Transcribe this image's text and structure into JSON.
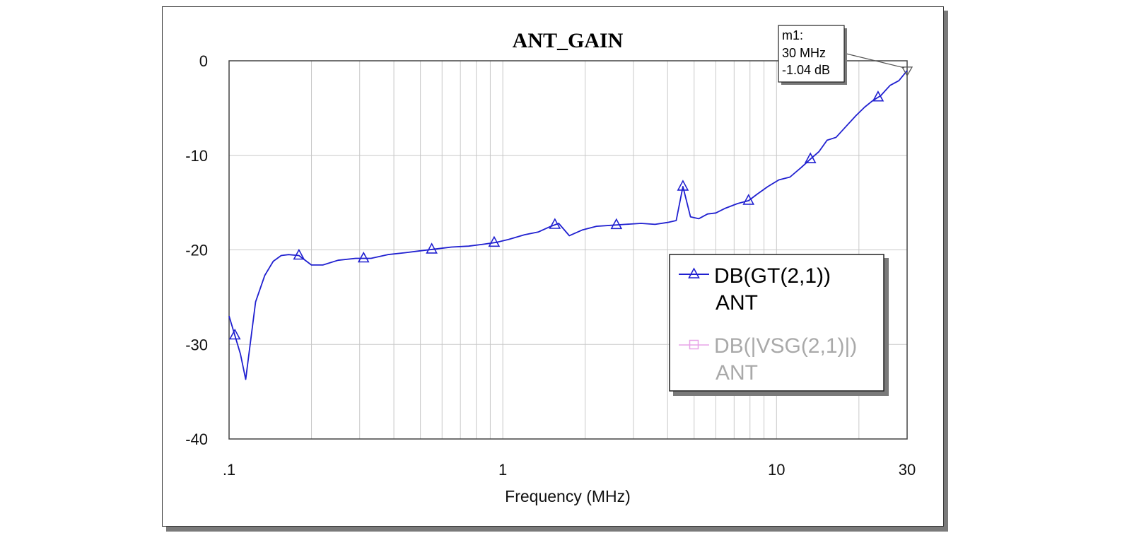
{
  "chart_data": {
    "type": "line",
    "title": "ANT_GAIN",
    "xlabel": "Frequency (MHz)",
    "ylabel": "",
    "x_scale": "log",
    "xlim": [
      0.1,
      30
    ],
    "ylim": [
      -40,
      0
    ],
    "grid": true,
    "x_tick_labels": [
      {
        "value": 0.1,
        "label": ".1"
      },
      {
        "value": 1,
        "label": "1"
      },
      {
        "value": 10,
        "label": "10"
      },
      {
        "value": 30,
        "label": "30"
      }
    ],
    "y_tick_labels": [
      {
        "value": 0,
        "label": "0"
      },
      {
        "value": -10,
        "label": "-10"
      },
      {
        "value": -20,
        "label": "-20"
      },
      {
        "value": -30,
        "label": "-30"
      },
      {
        "value": -40,
        "label": "-40"
      }
    ],
    "legend_position": "lower-right",
    "series": [
      {
        "name": "DB(GT(2,1))",
        "name_line2": "ANT",
        "color": "#2020d0",
        "marker": "triangle",
        "x": [
          0.1,
          0.11,
          0.115,
          0.125,
          0.135,
          0.145,
          0.155,
          0.165,
          0.18,
          0.2,
          0.22,
          0.25,
          0.29,
          0.33,
          0.38,
          0.44,
          0.5,
          0.57,
          0.65,
          0.75,
          0.85,
          0.95,
          1.05,
          1.2,
          1.35,
          1.5,
          1.6,
          1.75,
          1.95,
          2.2,
          2.5,
          2.8,
          3.2,
          3.6,
          4.0,
          4.3,
          4.55,
          4.85,
          5.2,
          5.6,
          6.0,
          6.5,
          7.2,
          7.9,
          8.5,
          9.3,
          10.2,
          11.2,
          12.3,
          13.3,
          14.3,
          15.3,
          16.5,
          18.0,
          19.5,
          21.0,
          22.5,
          24.0,
          26.0,
          28.0,
          30.0
        ],
        "y": [
          -27.0,
          -31.0,
          -33.7,
          -25.5,
          -22.7,
          -21.2,
          -20.6,
          -20.5,
          -20.6,
          -21.6,
          -21.6,
          -21.1,
          -20.9,
          -20.9,
          -20.5,
          -20.3,
          -20.1,
          -19.9,
          -19.7,
          -19.6,
          -19.4,
          -19.2,
          -18.9,
          -18.4,
          -18.1,
          -17.5,
          -17.2,
          -18.5,
          -17.9,
          -17.5,
          -17.4,
          -17.3,
          -17.2,
          -17.3,
          -17.1,
          -16.9,
          -13.3,
          -16.5,
          -16.7,
          -16.2,
          -16.1,
          -15.6,
          -15.1,
          -14.8,
          -14.1,
          -13.3,
          -12.6,
          -12.3,
          -11.3,
          -10.4,
          -9.6,
          -8.4,
          -8.1,
          -6.9,
          -5.8,
          -4.9,
          -4.2,
          -3.7,
          -2.6,
          -2.1,
          -1.04
        ],
        "marker_x": [
          0.105,
          0.18,
          0.31,
          0.55,
          0.93,
          1.55,
          2.6,
          4.55,
          7.9,
          13.3,
          23.5
        ]
      },
      {
        "name": "DB(|VSG(2,1)|)",
        "name_line2": "ANT",
        "color": "#e7a3e7",
        "marker": "square",
        "x": [],
        "y": []
      }
    ],
    "markers": [
      {
        "label": "m1:",
        "x_text": "30 MHz",
        "y_text": "-1.04 dB",
        "x": 30,
        "y": -1.04
      }
    ]
  }
}
